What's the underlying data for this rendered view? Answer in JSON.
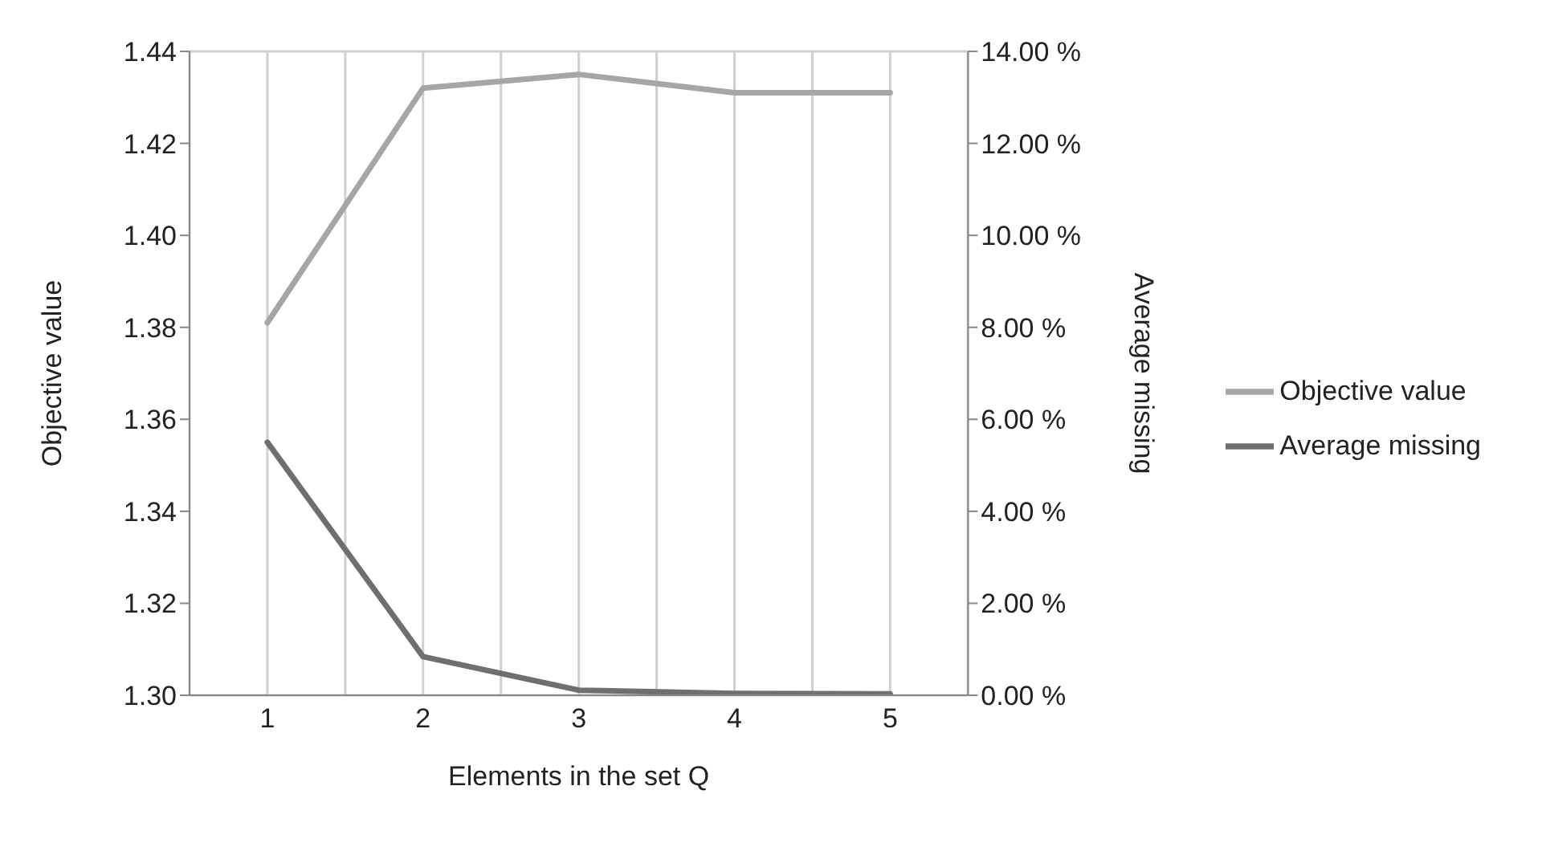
{
  "chart_data": {
    "type": "line",
    "categories": [
      "1",
      "2",
      "3",
      "4",
      "5"
    ],
    "xlabel": "Elements in the set Q",
    "ylabel": "Objective value",
    "y2label": "Average missing",
    "series": [
      {
        "name": "Objective value",
        "color": "#a6a6a6",
        "values": [
          1.381,
          1.432,
          1.435,
          1.431,
          1.431
        ]
      },
      {
        "name": "Average missing",
        "color": "#6f6f6f",
        "values": [
          5.5,
          0.84,
          0.11,
          0.04,
          0.03
        ],
        "axis": "y2"
      }
    ],
    "ylim": [
      1.3,
      1.44
    ],
    "yticks": [
      {
        "value": 1.3,
        "label": "1.30"
      },
      {
        "value": 1.32,
        "label": "1.32"
      },
      {
        "value": 1.34,
        "label": "1.34"
      },
      {
        "value": 1.36,
        "label": "1.36"
      },
      {
        "value": 1.38,
        "label": "1.38"
      },
      {
        "value": 1.4,
        "label": "1.40"
      },
      {
        "value": 1.42,
        "label": "1.42"
      },
      {
        "value": 1.44,
        "label": "1.44"
      }
    ],
    "y2lim": [
      0,
      14
    ],
    "y2ticks": [
      {
        "value": 0,
        "label": "0.00 %"
      },
      {
        "value": 2,
        "label": "2.00 %"
      },
      {
        "value": 4,
        "label": "4.00 %"
      },
      {
        "value": 6,
        "label": "6.00 %"
      },
      {
        "value": 8,
        "label": "8.00 %"
      },
      {
        "value": 10,
        "label": "10.00 %"
      },
      {
        "value": 12,
        "label": "12.00 %"
      },
      {
        "value": 14,
        "label": "14.00 %"
      }
    ],
    "grid": true,
    "legend": "right",
    "marker": "none",
    "line_style": "solid"
  }
}
